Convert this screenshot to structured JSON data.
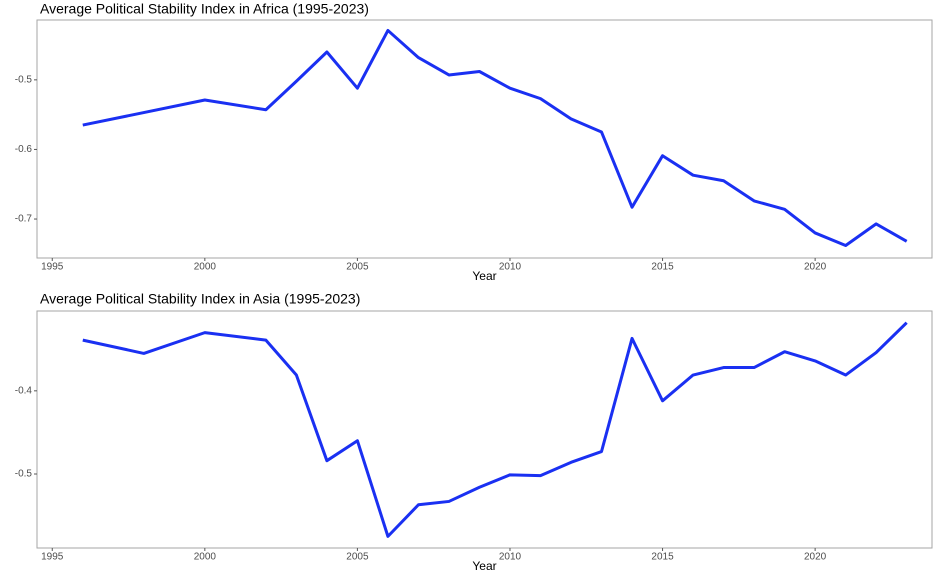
{
  "chart_data": [
    {
      "type": "line",
      "title": "Average Political Stability Index in Africa (1995-2023)",
      "x_label": "Year",
      "x": [
        1996,
        1998,
        2000,
        2002,
        2003,
        2004,
        2005,
        2006,
        2007,
        2008,
        2009,
        2010,
        2011,
        2012,
        2013,
        2014,
        2015,
        2016,
        2017,
        2018,
        2019,
        2020,
        2021,
        2022,
        2023
      ],
      "series": [
        {
          "color": "#1a30f2",
          "values": [
            -0.565,
            -0.547,
            -0.529,
            -0.543,
            -0.502,
            -0.46,
            -0.512,
            -0.429,
            -0.468,
            -0.493,
            -0.488,
            -0.512,
            -0.527,
            -0.556,
            -0.575,
            -0.683,
            -0.609,
            -0.637,
            -0.645,
            -0.674,
            -0.686,
            -0.72,
            -0.738,
            -0.707,
            -0.732
          ]
        }
      ],
      "xlim": [
        1994.5,
        2023.83
      ],
      "xticks": [
        1995,
        2000,
        2005,
        2010,
        2015,
        2020
      ],
      "ylim": [
        -0.756,
        -0.414
      ],
      "yticks": [
        -0.5,
        -0.6,
        -0.7
      ],
      "grid": false
    },
    {
      "type": "line",
      "title": "Average Political Stability Index in Asia (1995-2023)",
      "x_label": "Year",
      "x": [
        1996,
        1998,
        2000,
        2002,
        2003,
        2004,
        2005,
        2006,
        2007,
        2008,
        2009,
        2010,
        2011,
        2012,
        2013,
        2014,
        2015,
        2016,
        2017,
        2018,
        2019,
        2020,
        2021,
        2022,
        2023
      ],
      "series": [
        {
          "color": "#1a30f2",
          "values": [
            -0.339,
            -0.355,
            -0.33,
            -0.339,
            -0.381,
            -0.484,
            -0.46,
            -0.575,
            -0.537,
            -0.533,
            -0.516,
            -0.501,
            -0.502,
            -0.486,
            -0.473,
            -0.337,
            -0.412,
            -0.381,
            -0.372,
            -0.372,
            -0.353,
            -0.364,
            -0.381,
            -0.354,
            -0.318
          ]
        }
      ],
      "xlim": [
        1994.5,
        2023.83
      ],
      "xticks": [
        1995,
        2000,
        2005,
        2010,
        2015,
        2020
      ],
      "ylim": [
        -0.589,
        -0.304
      ],
      "yticks": [
        -0.4,
        -0.5
      ],
      "grid": false
    }
  ]
}
